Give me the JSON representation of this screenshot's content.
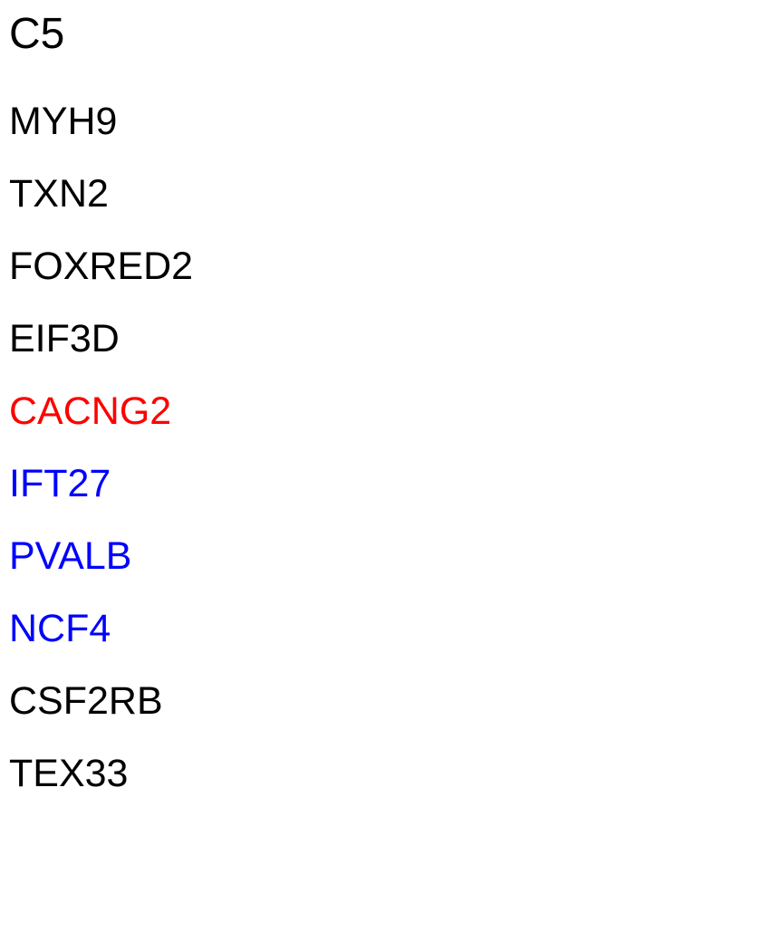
{
  "title": {
    "text": "C5",
    "color": "#000000"
  },
  "genes": [
    {
      "name": "MYH9",
      "color": "#000000"
    },
    {
      "name": "TXN2",
      "color": "#000000"
    },
    {
      "name": "FOXRED2",
      "color": "#000000"
    },
    {
      "name": "EIF3D",
      "color": "#000000"
    },
    {
      "name": "CACNG2",
      "color": "#ff0000"
    },
    {
      "name": "IFT27",
      "color": "#0000ff"
    },
    {
      "name": "PVALB",
      "color": "#0000ff"
    },
    {
      "name": "NCF4",
      "color": "#0000ff"
    },
    {
      "name": "CSF2RB",
      "color": "#000000"
    },
    {
      "name": "TEX33",
      "color": "#000000"
    }
  ]
}
